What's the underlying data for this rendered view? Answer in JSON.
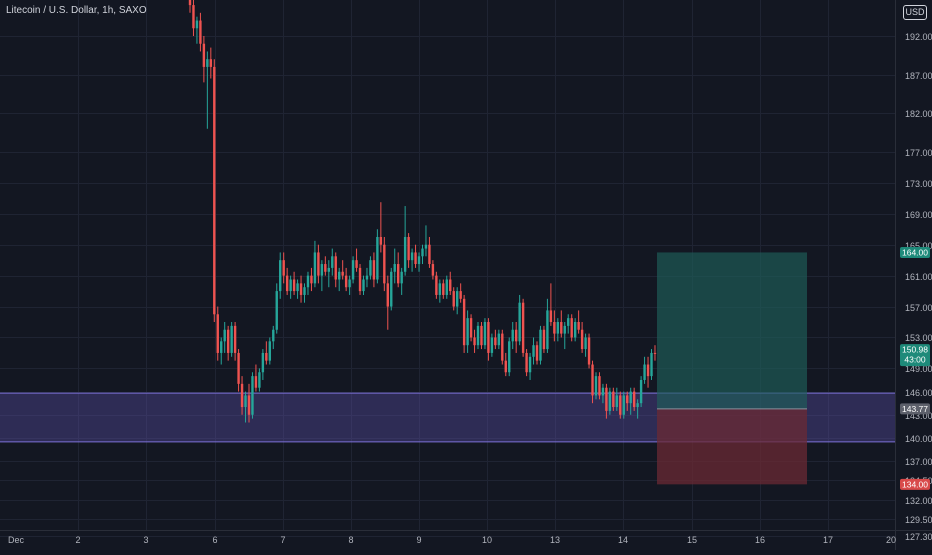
{
  "title": "Litecoin / U.S. Dollar, 1h, SAXO",
  "currency_badge": "USD",
  "colors": {
    "background": "#131722",
    "grid": "#1f2433",
    "up": "#26a69a",
    "down": "#ef5350",
    "zone": "#5b4fa8",
    "target": "#1f5f5a",
    "stop": "#6b2a34"
  },
  "chart_data": {
    "type": "candlestick",
    "x_ticks": [
      "Dec",
      "2",
      "3",
      "6",
      "7",
      "8",
      "9",
      "10",
      "13",
      "14",
      "15",
      "16",
      "17",
      "20"
    ],
    "y_ticks": [
      "192.00",
      "187.00",
      "182.00",
      "177.00",
      "173.00",
      "169.00",
      "165.00",
      "161.00",
      "157.00",
      "153.00",
      "149.00",
      "146.00",
      "143.00",
      "140.00",
      "137.00",
      "134.50",
      "132.00",
      "129.50",
      "127.30"
    ],
    "zone": {
      "low": 139.5,
      "high": 145.8
    },
    "position": {
      "entry": 143.77,
      "target": 164.0,
      "stop": 134.0,
      "start_day": "14",
      "end_day": "16"
    },
    "labels": {
      "current_price": "150.98",
      "countdown": "43:00",
      "entry": "143.77",
      "target": "164.00",
      "stop": "134.00"
    },
    "candles": [
      [
        197.0,
        199.0,
        195.0,
        196.0
      ],
      [
        196.0,
        197.0,
        192.0,
        193.0
      ],
      [
        193.0,
        194.5,
        191.0,
        194.0
      ],
      [
        194.0,
        195.0,
        190.0,
        191.0
      ],
      [
        191.0,
        192.0,
        186.0,
        188.0
      ],
      [
        188.0,
        190.0,
        180.0,
        189.0
      ],
      [
        189.0,
        190.5,
        186.5,
        188.0
      ],
      [
        188.0,
        189.0,
        155.0,
        156.0
      ],
      [
        156.0,
        157.0,
        150.0,
        151.0
      ],
      [
        151.0,
        153.0,
        149.5,
        152.5
      ],
      [
        152.5,
        155.0,
        151.0,
        154.0
      ],
      [
        154.0,
        154.5,
        150.0,
        151.0
      ],
      [
        151.0,
        155.0,
        150.5,
        154.5
      ],
      [
        154.5,
        155.0,
        150.0,
        151.0
      ],
      [
        151.0,
        151.5,
        146.0,
        147.0
      ],
      [
        147.0,
        148.0,
        143.0,
        144.0
      ],
      [
        144.0,
        146.0,
        142.0,
        145.5
      ],
      [
        145.5,
        147.0,
        142.0,
        143.0
      ],
      [
        143.0,
        148.5,
        142.5,
        148.0
      ],
      [
        148.0,
        149.5,
        146.0,
        146.5
      ],
      [
        146.5,
        149.0,
        146.0,
        148.5
      ],
      [
        148.5,
        151.5,
        147.5,
        151.0
      ],
      [
        151.0,
        152.5,
        149.5,
        150.0
      ],
      [
        150.0,
        153.0,
        149.5,
        152.5
      ],
      [
        152.5,
        154.5,
        151.5,
        154.0
      ],
      [
        154.0,
        160.0,
        153.5,
        159.0
      ],
      [
        159.0,
        164.0,
        158.0,
        163.0
      ],
      [
        163.0,
        164.0,
        160.0,
        161.0
      ],
      [
        161.0,
        162.0,
        158.5,
        159.0
      ],
      [
        159.0,
        161.0,
        158.0,
        160.5
      ],
      [
        160.5,
        161.5,
        158.5,
        159.0
      ],
      [
        159.0,
        160.5,
        158.0,
        160.0
      ],
      [
        160.0,
        161.0,
        157.5,
        158.5
      ],
      [
        158.5,
        160.0,
        157.5,
        159.5
      ],
      [
        159.5,
        161.5,
        158.5,
        161.0
      ],
      [
        161.0,
        162.0,
        159.0,
        160.0
      ],
      [
        160.0,
        165.5,
        159.5,
        164.0
      ],
      [
        164.0,
        165.0,
        160.0,
        161.0
      ],
      [
        161.0,
        163.0,
        159.0,
        162.5
      ],
      [
        162.5,
        163.5,
        161.0,
        161.5
      ],
      [
        161.5,
        163.0,
        159.5,
        162.0
      ],
      [
        162.0,
        164.5,
        161.0,
        163.5
      ],
      [
        163.5,
        164.0,
        159.5,
        160.5
      ],
      [
        160.5,
        162.0,
        159.0,
        161.5
      ],
      [
        161.5,
        163.0,
        160.5,
        161.0
      ],
      [
        161.0,
        162.0,
        159.0,
        159.5
      ],
      [
        159.5,
        161.0,
        158.5,
        160.5
      ],
      [
        160.5,
        163.5,
        160.0,
        163.0
      ],
      [
        163.0,
        164.5,
        161.5,
        162.0
      ],
      [
        162.0,
        162.5,
        158.5,
        159.0
      ],
      [
        159.0,
        161.0,
        158.5,
        160.5
      ],
      [
        160.5,
        162.0,
        159.5,
        161.0
      ],
      [
        161.0,
        163.5,
        160.5,
        163.0
      ],
      [
        163.0,
        164.0,
        159.5,
        160.5
      ],
      [
        160.5,
        167.0,
        160.0,
        166.0
      ],
      [
        166.0,
        170.5,
        164.0,
        165.0
      ],
      [
        165.0,
        166.0,
        159.0,
        160.0
      ],
      [
        160.0,
        161.0,
        154.0,
        157.0
      ],
      [
        157.0,
        162.0,
        156.5,
        161.5
      ],
      [
        161.5,
        164.5,
        160.0,
        162.5
      ],
      [
        162.5,
        164.0,
        159.5,
        160.0
      ],
      [
        160.0,
        162.0,
        158.5,
        161.5
      ],
      [
        161.5,
        170.0,
        161.0,
        166.0
      ],
      [
        166.0,
        166.5,
        162.0,
        163.0
      ],
      [
        163.0,
        164.5,
        161.5,
        164.0
      ],
      [
        164.0,
        165.0,
        162.0,
        162.5
      ],
      [
        162.5,
        164.0,
        161.5,
        163.5
      ],
      [
        163.5,
        165.0,
        162.5,
        164.5
      ],
      [
        164.5,
        167.5,
        163.5,
        165.0
      ],
      [
        165.0,
        166.0,
        162.0,
        162.5
      ],
      [
        162.5,
        163.0,
        160.5,
        161.0
      ],
      [
        161.0,
        161.5,
        158.0,
        158.5
      ],
      [
        158.5,
        160.5,
        157.5,
        160.0
      ],
      [
        160.0,
        160.5,
        158.0,
        158.5
      ],
      [
        158.5,
        161.0,
        158.0,
        160.5
      ],
      [
        160.5,
        161.5,
        158.5,
        159.0
      ],
      [
        159.0,
        159.5,
        156.5,
        157.0
      ],
      [
        157.0,
        159.5,
        156.0,
        159.0
      ],
      [
        159.0,
        160.0,
        157.5,
        158.0
      ],
      [
        158.0,
        158.5,
        151.0,
        152.0
      ],
      [
        152.0,
        156.5,
        151.0,
        155.5
      ],
      [
        155.5,
        156.0,
        152.5,
        153.0
      ],
      [
        153.0,
        154.0,
        151.0,
        152.0
      ],
      [
        152.0,
        155.0,
        151.5,
        154.5
      ],
      [
        154.5,
        155.0,
        151.5,
        152.0
      ],
      [
        152.0,
        155.5,
        151.5,
        155.0
      ],
      [
        155.0,
        155.5,
        150.0,
        151.0
      ],
      [
        151.0,
        153.5,
        150.5,
        153.0
      ],
      [
        153.0,
        154.0,
        151.5,
        152.0
      ],
      [
        152.0,
        154.0,
        151.5,
        153.5
      ],
      [
        153.5,
        154.0,
        149.5,
        150.0
      ],
      [
        150.0,
        151.0,
        148.0,
        148.5
      ],
      [
        148.5,
        153.0,
        148.0,
        152.5
      ],
      [
        152.5,
        155.0,
        151.5,
        154.0
      ],
      [
        154.0,
        155.0,
        151.0,
        152.5
      ],
      [
        152.5,
        158.5,
        152.0,
        157.5
      ],
      [
        157.5,
        158.0,
        150.5,
        151.0
      ],
      [
        151.0,
        151.5,
        148.0,
        148.5
      ],
      [
        148.5,
        151.0,
        147.5,
        150.5
      ],
      [
        150.5,
        153.0,
        149.5,
        152.0
      ],
      [
        152.0,
        152.5,
        149.5,
        150.0
      ],
      [
        150.0,
        154.5,
        149.5,
        154.0
      ],
      [
        154.0,
        154.5,
        151.0,
        151.5
      ],
      [
        151.5,
        158.0,
        151.0,
        156.5
      ],
      [
        156.5,
        160.0,
        154.5,
        155.0
      ],
      [
        155.0,
        156.5,
        152.5,
        153.5
      ],
      [
        153.5,
        155.5,
        152.5,
        155.0
      ],
      [
        155.0,
        156.5,
        153.0,
        153.5
      ],
      [
        153.5,
        155.0,
        151.5,
        154.5
      ],
      [
        154.5,
        156.0,
        153.5,
        155.5
      ],
      [
        155.5,
        156.0,
        152.5,
        153.0
      ],
      [
        153.0,
        155.5,
        152.5,
        155.0
      ],
      [
        155.0,
        156.5,
        153.5,
        154.0
      ],
      [
        154.0,
        155.0,
        151.0,
        151.5
      ],
      [
        151.5,
        153.5,
        150.5,
        153.0
      ],
      [
        153.0,
        153.5,
        149.0,
        149.5
      ],
      [
        149.5,
        150.0,
        144.5,
        145.5
      ],
      [
        145.5,
        148.5,
        145.0,
        148.0
      ],
      [
        148.0,
        148.5,
        145.0,
        145.5
      ],
      [
        145.5,
        147.0,
        144.5,
        146.5
      ],
      [
        146.5,
        147.0,
        142.5,
        143.5
      ],
      [
        143.5,
        146.5,
        143.0,
        146.0
      ],
      [
        146.0,
        146.5,
        143.5,
        144.0
      ],
      [
        144.0,
        146.5,
        143.5,
        145.5
      ],
      [
        145.5,
        146.0,
        142.5,
        143.0
      ],
      [
        143.0,
        146.0,
        142.5,
        145.5
      ],
      [
        145.5,
        146.0,
        143.5,
        144.5
      ],
      [
        144.5,
        146.5,
        143.0,
        146.0
      ],
      [
        146.0,
        146.5,
        143.5,
        144.0
      ],
      [
        144.0,
        145.0,
        142.5,
        144.5
      ],
      [
        144.5,
        148.0,
        144.0,
        147.5
      ],
      [
        147.5,
        150.5,
        147.0,
        149.5
      ],
      [
        149.5,
        150.5,
        146.5,
        148.0
      ],
      [
        148.0,
        151.5,
        147.5,
        151.0
      ],
      [
        151.0,
        152.0,
        150.0,
        150.98
      ]
    ]
  }
}
